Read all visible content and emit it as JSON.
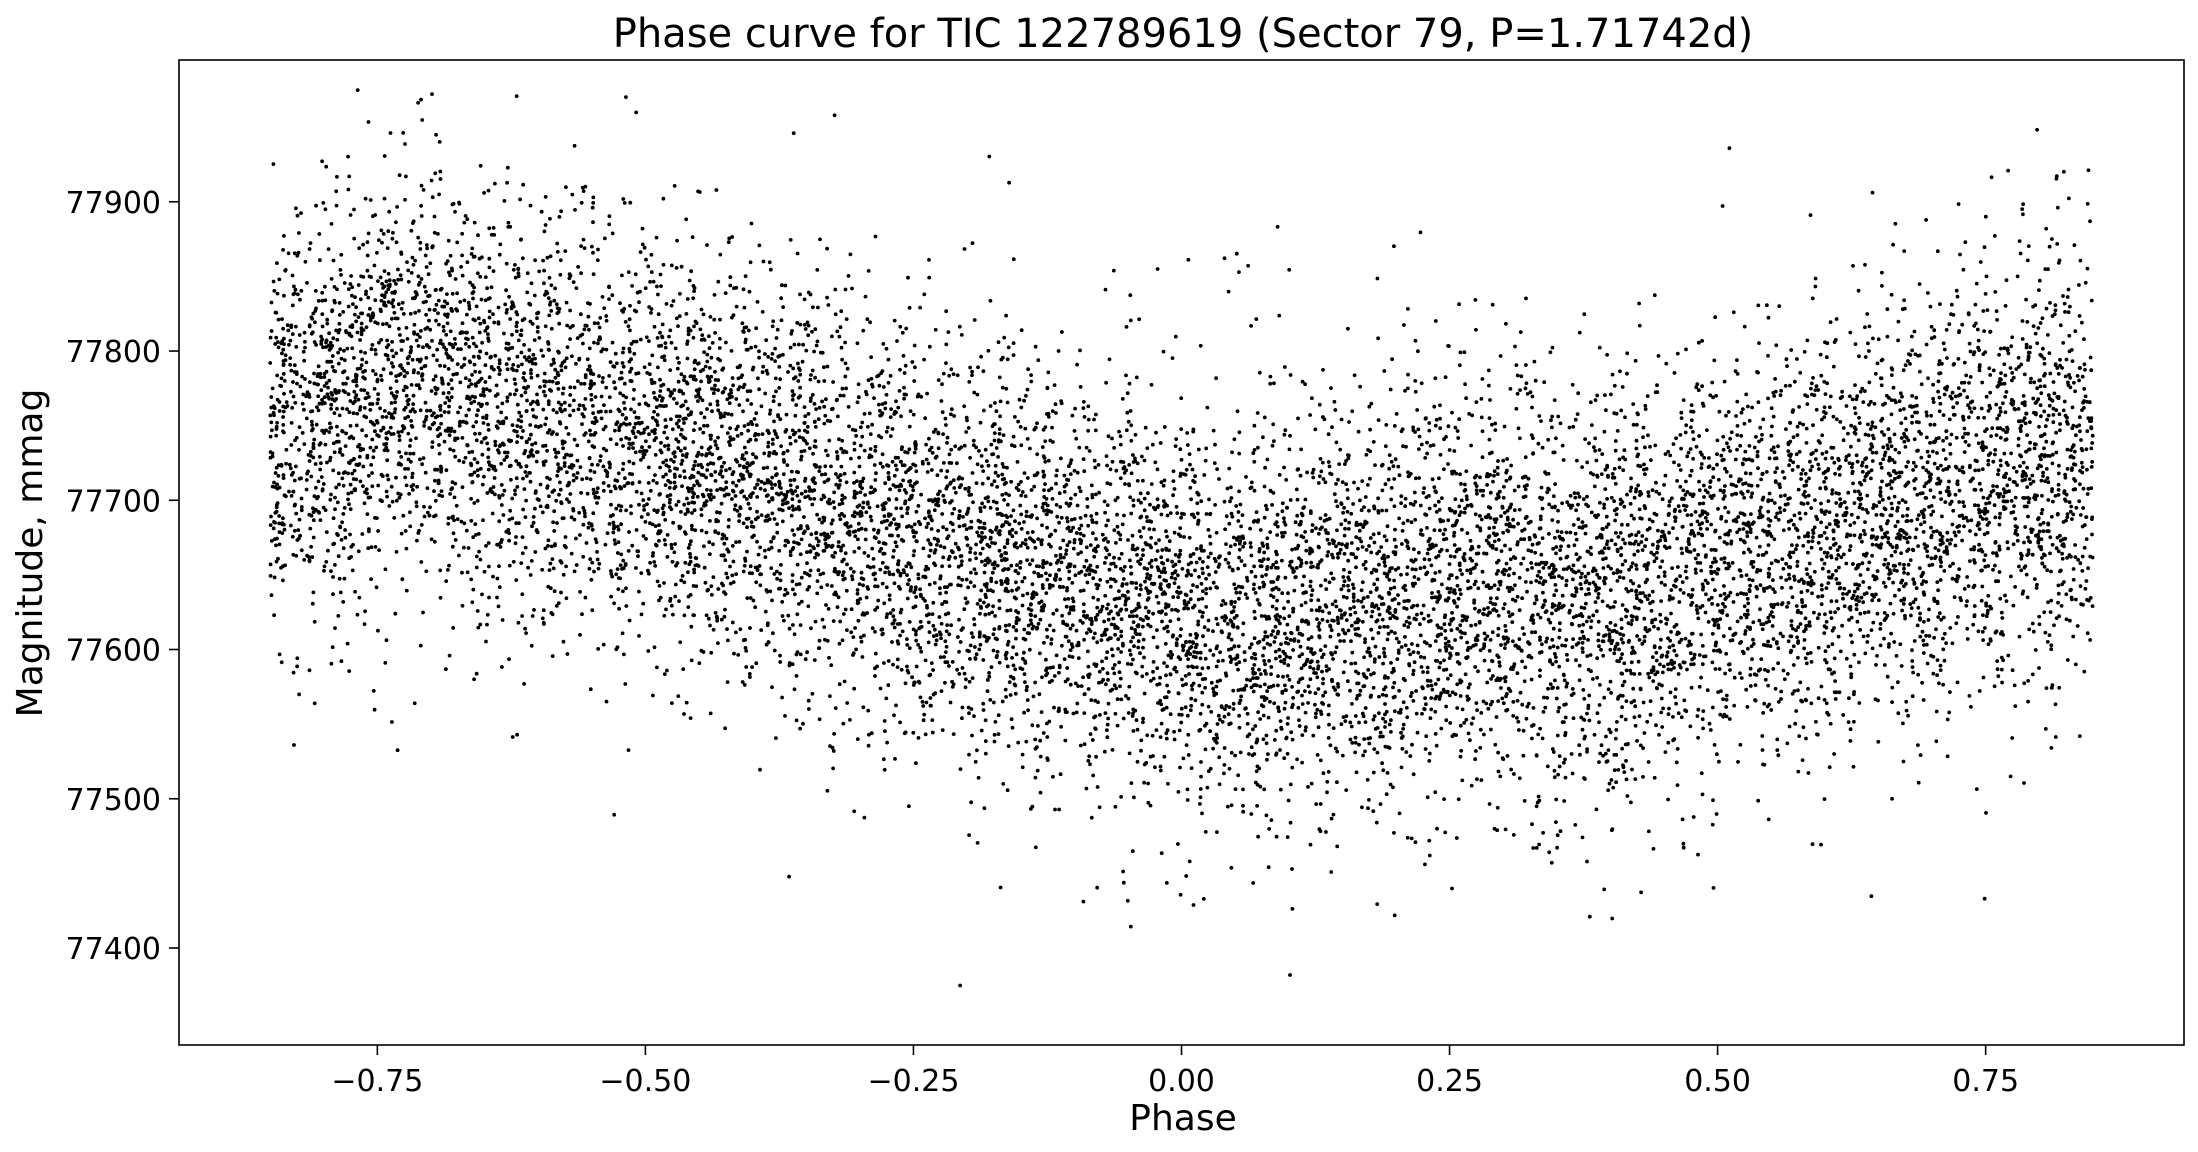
{
  "chart_data": {
    "type": "scatter",
    "title": "Phase curve for TIC 122789619 (Sector 79, P=1.71742d)",
    "xlabel": "Phase",
    "ylabel": "Magnitude, mmag",
    "xlim": [
      -0.935,
      0.935
    ],
    "ylim": [
      77335,
      77995
    ],
    "x_ticks": [
      -0.75,
      -0.5,
      -0.25,
      0.0,
      0.25,
      0.5,
      0.75
    ],
    "x_tick_labels": [
      "−0.75",
      "−0.50",
      "−0.25",
      "0.00",
      "0.25",
      "0.50",
      "0.75"
    ],
    "y_ticks": [
      77400,
      77500,
      77600,
      77700,
      77800,
      77900
    ],
    "y_tick_labels": [
      "77400",
      "77500",
      "77600",
      "77700",
      "77800",
      "77900"
    ],
    "grid": false,
    "marker_color": "#000000",
    "series": [
      {
        "x": [
          -0.85,
          -0.8,
          -0.75,
          -0.7,
          -0.65,
          -0.6,
          -0.55,
          -0.5,
          -0.45,
          -0.4,
          -0.35,
          -0.3,
          -0.25,
          -0.2,
          -0.15,
          -0.1,
          -0.05,
          0.0,
          0.05,
          0.1,
          0.15,
          0.2,
          0.25,
          0.3,
          0.35,
          0.4,
          0.45,
          0.5,
          0.55,
          0.6,
          0.65,
          0.7,
          0.75,
          0.8,
          0.85
        ],
        "y": [
          77740,
          77760,
          77775,
          77780,
          77770,
          77755,
          77750,
          77745,
          77730,
          77720,
          77705,
          77690,
          77675,
          77665,
          77660,
          77650,
          77640,
          77630,
          77625,
          77625,
          77630,
          77640,
          77645,
          77640,
          77635,
          77640,
          77650,
          77660,
          77665,
          77675,
          77690,
          77700,
          77710,
          77725,
          77735
        ],
        "scatter_sd": 70,
        "points_per_bin": 350
      }
    ]
  }
}
